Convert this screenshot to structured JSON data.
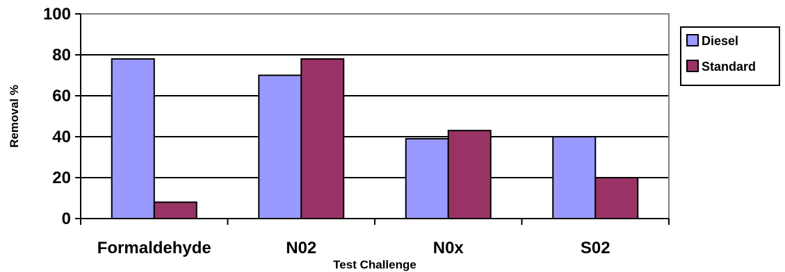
{
  "chart_data": {
    "type": "bar",
    "categories": [
      "Formaldehyde",
      "N02",
      "N0x",
      "S02"
    ],
    "series": [
      {
        "name": "Diesel",
        "color": "#9999ff",
        "values": [
          78,
          70,
          39,
          40
        ]
      },
      {
        "name": "Standard",
        "color": "#993366",
        "values": [
          8,
          78,
          43,
          20
        ]
      }
    ],
    "xlabel": "Test Challenge",
    "ylabel": "Removal %",
    "ylim": [
      0,
      100
    ],
    "yticks": [
      0,
      20,
      40,
      60,
      80,
      100
    ],
    "grid": true,
    "legend_position": "right",
    "plot_background": "#ffffff",
    "gridline_color": "#000000"
  }
}
